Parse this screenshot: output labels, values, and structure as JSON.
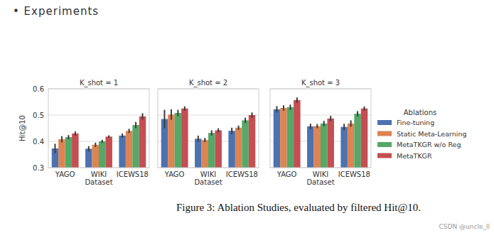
{
  "header": "• Experiments",
  "caption": "Figure 3: Ablation Studies, evaluated by filtered Hit@10.",
  "watermark": "CSDN @uncle_ll",
  "legend_title": "Ablations",
  "chart_data": [
    {
      "type": "bar",
      "title": "K_shot = 1",
      "x_label": "Dataset",
      "y_label": "Hit@10",
      "categories": [
        "YAGO",
        "WIKI",
        "ICEWS18"
      ],
      "ylim": [
        0.3,
        0.6
      ],
      "yticks": [
        0.3,
        0.4,
        0.5,
        0.6
      ],
      "grid": true,
      "series": [
        {
          "name": "Fine-tuning",
          "color": "#4c72b0",
          "values": [
            0.373,
            0.372,
            0.422
          ],
          "errors": [
            0.018,
            0.01,
            0.008
          ]
        },
        {
          "name": "Static Meta-Learning",
          "color": "#dd8452",
          "values": [
            0.408,
            0.387,
            0.44
          ],
          "errors": [
            0.012,
            0.008,
            0.008
          ]
        },
        {
          "name": "MetaTKGR w/o Reg",
          "color": "#55a868",
          "values": [
            0.416,
            0.4,
            0.462
          ],
          "errors": [
            0.008,
            0.006,
            0.012
          ]
        },
        {
          "name": "MetaTKGR",
          "color": "#c44e52",
          "values": [
            0.43,
            0.418,
            0.495
          ],
          "errors": [
            0.008,
            0.005,
            0.012
          ]
        }
      ]
    },
    {
      "type": "bar",
      "title": "K_shot = 2",
      "x_label": "Dataset",
      "tick_labels": "x",
      "categories": [
        "YAGO",
        "WIKI",
        "ICEWS18"
      ],
      "ylim": [
        0.3,
        0.6
      ],
      "yticks": [
        0.3,
        0.4,
        0.5,
        0.6
      ],
      "grid": true,
      "series": [
        {
          "name": "Fine-tuning",
          "color": "#4c72b0",
          "values": [
            0.485,
            0.41,
            0.44
          ],
          "errors": [
            0.035,
            0.012,
            0.012
          ]
        },
        {
          "name": "Static Meta-Learning",
          "color": "#dd8452",
          "values": [
            0.502,
            0.405,
            0.452
          ],
          "errors": [
            0.02,
            0.008,
            0.008
          ]
        },
        {
          "name": "MetaTKGR w/o Reg",
          "color": "#55a868",
          "values": [
            0.508,
            0.432,
            0.48
          ],
          "errors": [
            0.012,
            0.01,
            0.01
          ]
        },
        {
          "name": "MetaTKGR",
          "color": "#c44e52",
          "values": [
            0.525,
            0.442,
            0.5
          ],
          "errors": [
            0.008,
            0.008,
            0.01
          ]
        }
      ]
    },
    {
      "type": "bar",
      "title": "K_shot = 3",
      "x_label": "Dataset",
      "tick_labels": "x",
      "legend": "right",
      "categories": [
        "YAGO",
        "WIKI",
        "ICEWS18"
      ],
      "ylim": [
        0.3,
        0.6
      ],
      "yticks": [
        0.3,
        0.4,
        0.5,
        0.6
      ],
      "grid": true,
      "series": [
        {
          "name": "Fine-tuning",
          "color": "#4c72b0",
          "values": [
            0.522,
            0.457,
            0.455
          ],
          "errors": [
            0.012,
            0.01,
            0.012
          ]
        },
        {
          "name": "Static Meta-Learning",
          "color": "#dd8452",
          "values": [
            0.527,
            0.458,
            0.468
          ],
          "errors": [
            0.01,
            0.008,
            0.012
          ]
        },
        {
          "name": "MetaTKGR w/o Reg",
          "color": "#55a868",
          "values": [
            0.53,
            0.468,
            0.505
          ],
          "errors": [
            0.01,
            0.01,
            0.01
          ]
        },
        {
          "name": "MetaTKGR",
          "color": "#c44e52",
          "values": [
            0.557,
            0.487,
            0.525
          ],
          "errors": [
            0.01,
            0.01,
            0.008
          ]
        }
      ]
    }
  ]
}
